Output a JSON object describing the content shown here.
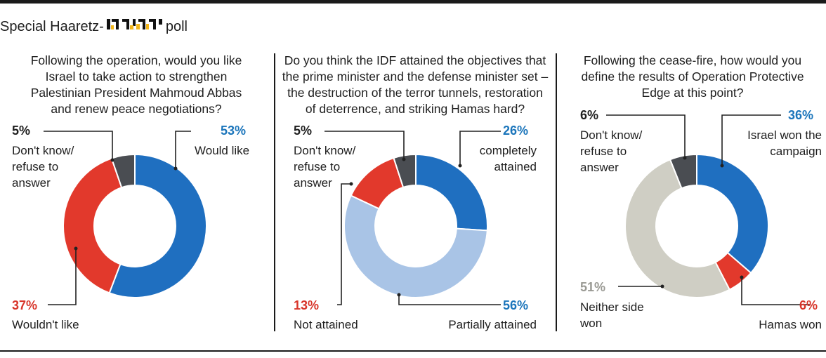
{
  "header": {
    "prefix": "Special Haaretz-",
    "logo_text": "דיאלוג",
    "suffix": "poll"
  },
  "colors": {
    "blue": "#1f6fc0",
    "red": "#e2392c",
    "dark_gray": "#4a4d52",
    "light_blue": "#a9c4e6",
    "beige": "#cfcec4",
    "blue_text": "#1b75bb",
    "red_text": "#d8352a",
    "gray_text": "#9a9a94",
    "line": "#222222"
  },
  "chart_data": [
    {
      "type": "pie",
      "question": "Following the operation, would you like Israel to take action to strengthen Palestinian President Mahmoud Abbas and renew peace negotiations?",
      "question_lines": [
        "Following the operation, would you like",
        "Israel to take action to strengthen",
        "Palestinian President Mahmoud Abbas",
        "and renew peace negotiations?"
      ],
      "slices": [
        {
          "value": 53,
          "pct": "53%",
          "label": [
            "Would like"
          ],
          "color": "#1f6fc0",
          "text_color": "#1b75bb"
        },
        {
          "value": 37,
          "pct": "37%",
          "label": [
            "Wouldn't like"
          ],
          "color": "#e2392c",
          "text_color": "#d8352a"
        },
        {
          "value": 5,
          "pct": "5%",
          "label": [
            "Don't know/",
            "refuse to",
            "answer"
          ],
          "color": "#4a4d52",
          "text_color": "#1e1e1e"
        }
      ]
    },
    {
      "type": "pie",
      "question": "Do you think the IDF attained the objectives that the prime minister and the defense minister set – the destruction of the terror tunnels, restoration of deterrence, and striking Hamas hard?",
      "question_lines": [
        "Do you think the IDF attained the objectives that",
        "the prime minister and the defense minister set –",
        "the destruction of the terror tunnels, restoration",
        "of deterrence, and striking Hamas hard?"
      ],
      "slices": [
        {
          "value": 26,
          "pct": "26%",
          "label": [
            "completely",
            "attained"
          ],
          "color": "#1f6fc0",
          "text_color": "#1b75bb"
        },
        {
          "value": 56,
          "pct": "56%",
          "label": [
            "Partially attained"
          ],
          "color": "#a9c4e6",
          "text_color": "#1b75bb"
        },
        {
          "value": 13,
          "pct": "13%",
          "label": [
            "Not attained"
          ],
          "color": "#e2392c",
          "text_color": "#d8352a"
        },
        {
          "value": 5,
          "pct": "5%",
          "label": [
            "Don't know/",
            "refuse to",
            "answer"
          ],
          "color": "#4a4d52",
          "text_color": "#1e1e1e"
        }
      ]
    },
    {
      "type": "pie",
      "question": "Following the cease-fire, how would you define the results of Operation Protective Edge at this point?",
      "question_lines": [
        "Following the cease-fire, how would you",
        "define the results of Operation Protective",
        "Edge at this point?"
      ],
      "slices": [
        {
          "value": 36,
          "pct": "36%",
          "label": [
            "Israel won the",
            "campaign"
          ],
          "color": "#1f6fc0",
          "text_color": "#1b75bb"
        },
        {
          "value": 6,
          "pct": "6%",
          "label": [
            "Hamas won"
          ],
          "color": "#e2392c",
          "text_color": "#d8352a"
        },
        {
          "value": 51,
          "pct": "51%",
          "label": [
            "Neither side",
            "won"
          ],
          "color": "#cfcec4",
          "text_color": "#9a9a94"
        },
        {
          "value": 6,
          "pct": "6%",
          "label": [
            "Don't know/",
            "refuse to",
            "answer"
          ],
          "color": "#4a4d52",
          "text_color": "#1e1e1e"
        }
      ]
    }
  ]
}
